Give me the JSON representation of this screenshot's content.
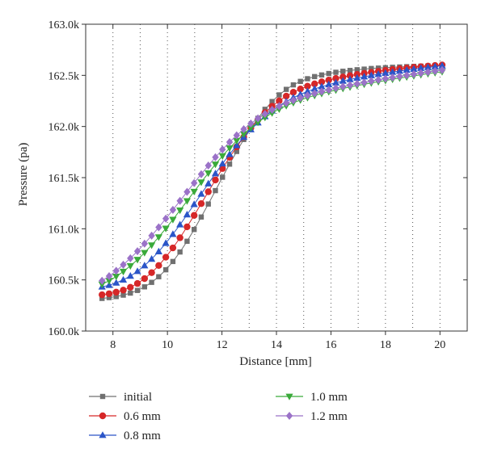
{
  "chart_data": {
    "type": "line",
    "xlabel": "Distance [mm]",
    "ylabel": "Pressure (pa)",
    "xlim": [
      7,
      21
    ],
    "ylim": [
      160000,
      163000
    ],
    "x_ticks": [
      8,
      10,
      12,
      14,
      16,
      18,
      20
    ],
    "x_tick_labels": [
      "8",
      "10",
      "12",
      "14",
      "16",
      "18",
      "20"
    ],
    "y_ticks": [
      160000,
      160500,
      161000,
      161500,
      162000,
      162500,
      163000
    ],
    "y_tick_labels": [
      "160.0k",
      "160.5k",
      "161.0k",
      "161.5k",
      "162.0k",
      "162.5k",
      "163.0k"
    ],
    "grid": "vertical dotted",
    "legend_position": "bottom",
    "x": [
      7.6,
      7.86,
      8.12,
      8.38,
      8.64,
      8.9,
      9.16,
      9.42,
      9.68,
      9.94,
      10.2,
      10.46,
      10.72,
      10.98,
      11.24,
      11.5,
      11.76,
      12.02,
      12.28,
      12.54,
      12.8,
      13.06,
      13.32,
      13.58,
      13.84,
      14.1,
      14.36,
      14.62,
      14.88,
      15.14,
      15.4,
      15.66,
      15.92,
      16.18,
      16.44,
      16.7,
      16.96,
      17.22,
      17.48,
      17.74,
      18.0,
      18.26,
      18.52,
      18.78,
      19.04,
      19.3,
      19.56,
      19.82,
      20.08
    ],
    "series": [
      {
        "name": "initial",
        "color": "#707070",
        "marker": "square",
        "values": [
          160319,
          160327,
          160337,
          160351,
          160371,
          160397,
          160432,
          160476,
          160531,
          160599,
          160680,
          160773,
          160878,
          160993,
          161115,
          161242,
          161373,
          161504,
          161632,
          161756,
          161873,
          161982,
          162080,
          162168,
          162244,
          162309,
          162363,
          162407,
          162441,
          162467,
          162488,
          162504,
          162518,
          162530,
          162540,
          162548,
          162555,
          162561,
          162567,
          162571,
          162575,
          162579,
          162582,
          162585,
          162588,
          162590,
          162592,
          162594,
          162596
        ]
      },
      {
        "name": "0.6 mm",
        "color": "#d62728",
        "marker": "circle",
        "values": [
          160355,
          160365,
          160380,
          160400,
          160428,
          160465,
          160513,
          160571,
          160641,
          160722,
          160813,
          160912,
          161019,
          161131,
          161246,
          161362,
          161477,
          161589,
          161698,
          161801,
          161897,
          161985,
          162065,
          162136,
          162198,
          162251,
          162297,
          162335,
          162367,
          162394,
          162417,
          162437,
          162454,
          162470,
          162484,
          162497,
          162509,
          162520,
          162530,
          162540,
          162549,
          162557,
          162565,
          162572,
          162579,
          162585,
          162591,
          162597,
          162602
        ]
      },
      {
        "name": "0.8 mm",
        "color": "#2b55c8",
        "marker": "triangle-up",
        "values": [
          160432,
          160448,
          160471,
          160501,
          160538,
          160584,
          160640,
          160704,
          160777,
          160859,
          160947,
          161040,
          161138,
          161239,
          161340,
          161441,
          161540,
          161636,
          161728,
          161815,
          161896,
          161970,
          162037,
          162098,
          162153,
          162202,
          162244,
          162282,
          162315,
          162343,
          162368,
          162390,
          162410,
          162428,
          162445,
          162460,
          162474,
          162487,
          162499,
          162511,
          162522,
          162532,
          162542,
          162552,
          162561,
          162570,
          162578,
          162586,
          162594
        ]
      },
      {
        "name": "1.0 mm",
        "color": "#3aaa3a",
        "marker": "triangle-down",
        "values": [
          160457,
          160492,
          160534,
          160582,
          160637,
          160698,
          160766,
          160840,
          160919,
          161003,
          161090,
          161181,
          161272,
          161364,
          161455,
          161544,
          161630,
          161712,
          161789,
          161861,
          161927,
          161987,
          162041,
          162089,
          162132,
          162170,
          162203,
          162233,
          162259,
          162282,
          162303,
          162322,
          162340,
          162356,
          162372,
          162386,
          162400,
          162413,
          162426,
          162438,
          162450,
          162462,
          162473,
          162484,
          162495,
          162506,
          162516,
          162526,
          162536
        ]
      },
      {
        "name": "1.2 mm",
        "color": "#9b72c8",
        "marker": "diamond",
        "values": [
          160491,
          160537,
          160589,
          160648,
          160712,
          160781,
          160855,
          160933,
          161014,
          161099,
          161185,
          161273,
          161361,
          161448,
          161534,
          161618,
          161699,
          161775,
          161847,
          161913,
          161974,
          162029,
          162079,
          162123,
          162163,
          162198,
          162229,
          162256,
          162281,
          162303,
          162323,
          162342,
          162359,
          162375,
          162390,
          162404,
          162418,
          162431,
          162444,
          162456,
          162468,
          162479,
          162490,
          162501,
          162512,
          162522,
          162532,
          162542,
          162552
        ]
      }
    ]
  }
}
